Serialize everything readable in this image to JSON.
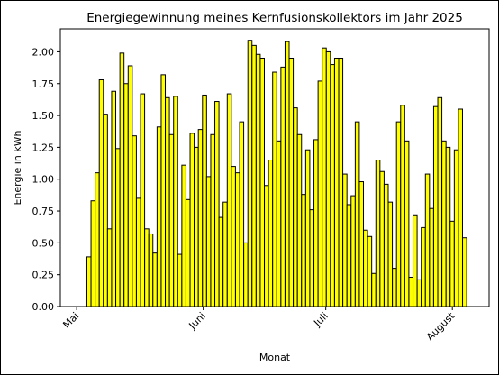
{
  "chart_data": {
    "type": "bar",
    "title": "Energiegewinnung meines Kernfusionskollektors im Jahr 2025",
    "xlabel": "Monat",
    "ylabel": "Energie in kWh",
    "x_start": "2025-05-04",
    "x_end": "2025-08-04",
    "xlim": [
      "2025-04-27",
      "2025-08-10"
    ],
    "ylim": [
      0,
      2.18
    ],
    "y_ticks": [
      "0.00",
      "0.25",
      "0.50",
      "0.75",
      "1.00",
      "1.25",
      "1.50",
      "1.75",
      "2.00"
    ],
    "x_ticks": [
      {
        "date": "2025-05-01",
        "label": "Mai"
      },
      {
        "date": "2025-06-01",
        "label": "Juni"
      },
      {
        "date": "2025-07-01",
        "label": "Juli"
      },
      {
        "date": "2025-08-01",
        "label": "August"
      }
    ],
    "values": [
      0.39,
      0.83,
      1.05,
      1.78,
      1.51,
      0.61,
      1.69,
      1.24,
      1.99,
      1.75,
      1.89,
      1.34,
      0.85,
      1.67,
      0.61,
      0.57,
      0.42,
      1.41,
      1.82,
      1.64,
      1.35,
      1.65,
      0.41,
      1.11,
      0.84,
      1.36,
      1.25,
      1.39,
      1.66,
      1.02,
      1.35,
      1.61,
      0.7,
      0.82,
      1.67,
      1.1,
      1.05,
      1.45,
      0.5,
      2.09,
      2.05,
      1.98,
      1.95,
      0.95,
      1.15,
      1.84,
      1.3,
      1.88,
      2.08,
      1.95,
      1.56,
      1.35,
      0.88,
      1.23,
      0.76,
      1.31,
      1.77,
      2.03,
      2.0,
      1.9,
      1.95,
      1.95,
      1.04,
      0.8,
      0.87,
      1.45,
      0.98,
      0.6,
      0.55,
      0.26,
      1.15,
      1.06,
      0.96,
      0.82,
      0.3,
      1.45,
      1.58,
      1.3,
      0.23,
      0.72,
      0.21,
      0.62,
      1.04,
      0.77,
      1.57,
      1.64,
      1.3,
      1.25,
      0.67,
      1.23,
      1.55,
      0.54
    ],
    "bar_color": "#ffff00",
    "edge_color": "#000000",
    "grid": false
  }
}
